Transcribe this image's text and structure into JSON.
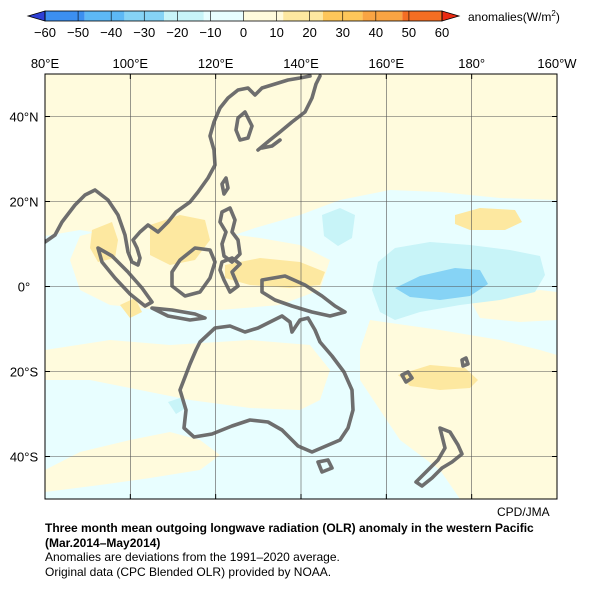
{
  "colorbar": {
    "ticks": [
      "−60",
      "−50",
      "−40",
      "−30",
      "−20",
      "−10",
      "0",
      "10",
      "20",
      "30",
      "40",
      "50",
      "60"
    ],
    "colors": [
      "#2e3fd6",
      "#3c8ff0",
      "#5db8f5",
      "#86d3f5",
      "#c8f4f8",
      "#e8feff",
      "#fffbdd",
      "#fde8a0",
      "#fdc65a",
      "#f9a443",
      "#f46e23",
      "#ea2b13"
    ],
    "unit_prefix": "anomalies(W/m",
    "unit_sup": "2",
    "unit_suffix": ")"
  },
  "map": {
    "lon_labels": [
      "80°E",
      "100°E",
      "120°E",
      "140°E",
      "160°E",
      "180°",
      "160°W"
    ],
    "lat_labels": [
      "40°N",
      "20°N",
      "0°",
      "20°S",
      "40°S"
    ],
    "lon_range": [
      80,
      200
    ],
    "lat_range": [
      -50,
      50
    ],
    "coastline_color": "#6e6e6e",
    "background_fill": "#e8feff"
  },
  "credit": "CPD/JMA",
  "caption": {
    "title": "Three month mean outgoing longwave radiation (OLR) anomaly in the western Pacific",
    "period": "(Mar.2014–May2014)",
    "note1": "Anomalies are deviations from the 1991–2020 average.",
    "note2": "Original data (CPC Blended OLR) provided by NOAA."
  }
}
